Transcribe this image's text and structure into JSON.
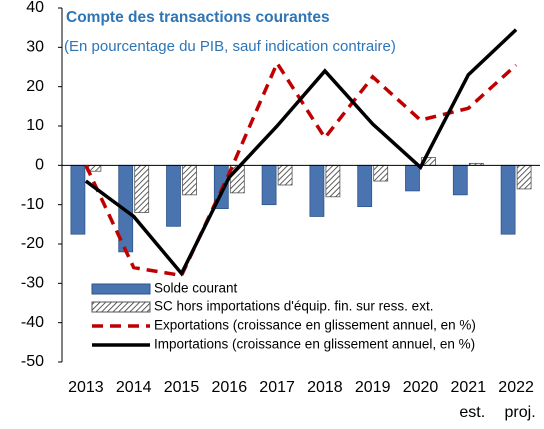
{
  "chart_data": {
    "type": "bar_line",
    "title": "Compte des transactions courantes",
    "subtitle": "(En pourcentage du PIB, sauf indication contraire)",
    "categories": [
      "2013",
      "2014",
      "2015",
      "2016",
      "2017",
      "2018",
      "2019",
      "2020",
      "2021",
      "2022"
    ],
    "category_notes": [
      null,
      null,
      null,
      null,
      null,
      null,
      null,
      null,
      "est.",
      "proj."
    ],
    "ylim": [
      -50,
      40
    ],
    "yticks": [
      -50,
      -40,
      -30,
      -20,
      -10,
      0,
      10,
      20,
      30,
      40
    ],
    "series": [
      {
        "name": "Solde courant",
        "kind": "bar",
        "color": "#4a74b0",
        "values": [
          -17.5,
          -22,
          -15.5,
          -11,
          -10,
          -13,
          -10.5,
          -6.5,
          -7.5,
          -17.5
        ]
      },
      {
        "name": "SC hors importations d'équip. fin. sur ress. ext.",
        "kind": "hatched-bar",
        "color": "#555555",
        "values": [
          -1.5,
          -12,
          -7.5,
          -7,
          -5,
          -8,
          -4,
          2,
          0.5,
          -6
        ]
      },
      {
        "name": "Exportations (croissance en glissement annuel, en %)",
        "kind": "dashed-line",
        "color": "#c00000",
        "values": [
          0,
          -26,
          -28,
          -2,
          26,
          7,
          22.5,
          11.5,
          14.5,
          25.5
        ]
      },
      {
        "name": "Importations (croissance en glissement annuel, en %)",
        "kind": "line",
        "color": "#000000",
        "values": [
          -4,
          -13,
          -27.5,
          -3,
          10,
          24,
          10.5,
          -0.5,
          23,
          34.5
        ]
      }
    ]
  }
}
